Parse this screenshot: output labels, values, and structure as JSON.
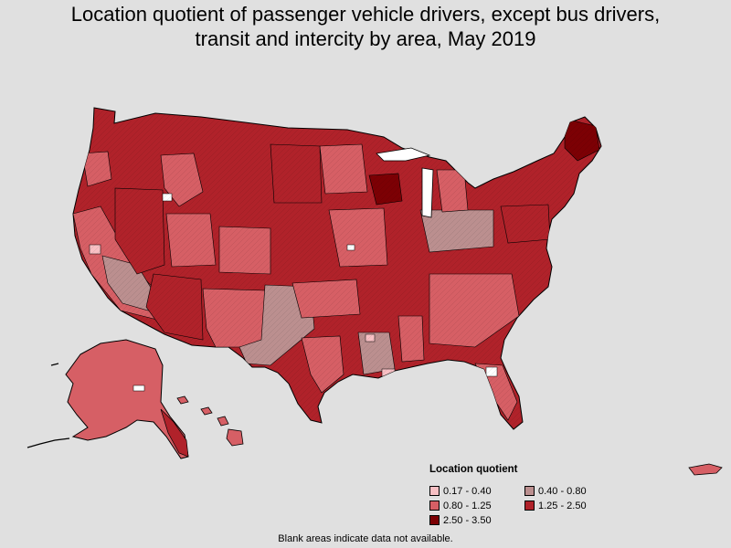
{
  "title": {
    "line1": "Location quotient of passenger vehicle drivers, except bus drivers,",
    "line2": "transit and intercity by area, May 2019"
  },
  "legend": {
    "title": "Location quotient",
    "items": [
      {
        "label": "0.17 - 0.40",
        "color": "#f8c0c4"
      },
      {
        "label": "0.40 - 0.80",
        "color": "#bb8f8f"
      },
      {
        "label": "0.80 - 1.25",
        "color": "#d65f65"
      },
      {
        "label": "1.25 - 2.50",
        "color": "#b0222a"
      },
      {
        "label": "2.50 - 3.50",
        "color": "#7c0004"
      }
    ]
  },
  "footnote": "Blank areas indicate data not available.",
  "colors": {
    "background": "#e0e0e0",
    "border": "#000000",
    "no_data": "#ffffff"
  }
}
